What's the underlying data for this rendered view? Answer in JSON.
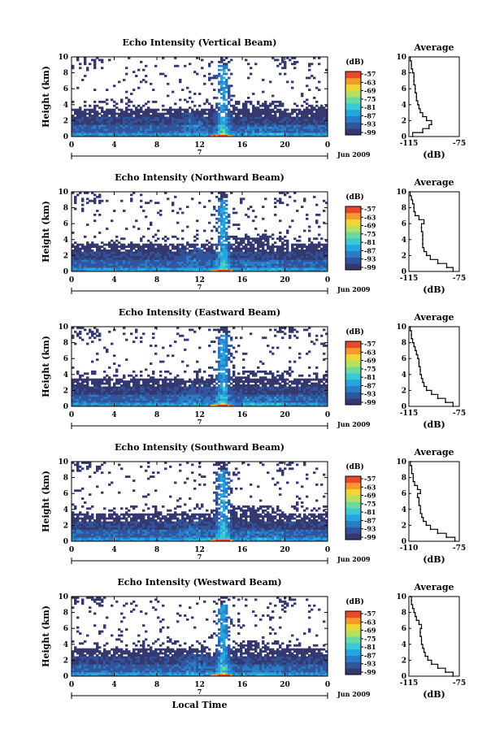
{
  "chart_data": [
    {
      "type": "heatmap",
      "title": "Echo Intensity (Vertical Beam)",
      "ylabel": "Height (km)",
      "x_ticks": [
        "0",
        "4",
        "8",
        "12",
        "16",
        "20",
        "0"
      ],
      "y_ticks": [
        "0",
        "2",
        "4",
        "6",
        "8",
        "10"
      ],
      "xlim": [
        0,
        24
      ],
      "ylim": [
        0,
        10
      ],
      "day_label": "7",
      "month_label": "Jun 2009",
      "colorbar": {
        "unit": "(dB)",
        "ticks": [
          "-57",
          "-63",
          "-69",
          "-75",
          "-81",
          "-87",
          "-93",
          "-99"
        ]
      },
      "profile": {
        "title": "Average",
        "xlabel": "(dB)",
        "x_ticks": [
          "-115",
          "-75"
        ],
        "xlim": [
          -115,
          -75
        ],
        "points": [
          [
            -112,
            0
          ],
          [
            -104,
            0.5
          ],
          [
            -99,
            1
          ],
          [
            -97,
            1.5
          ],
          [
            -101,
            2
          ],
          [
            -104,
            2.5
          ],
          [
            -106,
            3
          ],
          [
            -107,
            3.5
          ],
          [
            -108,
            4
          ],
          [
            -109,
            4.5
          ],
          [
            -109,
            5
          ],
          [
            -110,
            5.5
          ],
          [
            -110,
            6
          ],
          [
            -111,
            6.5
          ],
          [
            -111,
            7
          ],
          [
            -111,
            7.5
          ],
          [
            -112,
            8
          ],
          [
            -113,
            8.5
          ],
          [
            -113,
            9
          ],
          [
            -114,
            9.5
          ],
          [
            -114,
            10
          ]
        ]
      }
    },
    {
      "type": "heatmap",
      "title": "Echo Intensity (Northward Beam)",
      "ylabel": "Height (km)",
      "x_ticks": [
        "0",
        "4",
        "8",
        "12",
        "16",
        "20",
        "0"
      ],
      "y_ticks": [
        "0",
        "2",
        "4",
        "6",
        "8",
        "10"
      ],
      "xlim": [
        0,
        24
      ],
      "ylim": [
        0,
        10
      ],
      "day_label": "7",
      "month_label": "Jun 2009",
      "colorbar": {
        "unit": "(dB)",
        "ticks": [
          "-57",
          "-63",
          "-69",
          "-75",
          "-81",
          "-87",
          "-93",
          "-99"
        ]
      },
      "profile": {
        "title": "Average",
        "xlabel": "(dB)",
        "x_ticks": [
          "-115",
          "-75"
        ],
        "xlim": [
          -115,
          -75
        ],
        "points": [
          [
            -80,
            0
          ],
          [
            -85,
            0.5
          ],
          [
            -92,
            1
          ],
          [
            -98,
            1.5
          ],
          [
            -101,
            2
          ],
          [
            -103,
            2.5
          ],
          [
            -104,
            3
          ],
          [
            -104,
            3.5
          ],
          [
            -104,
            4
          ],
          [
            -104,
            4.5
          ],
          [
            -105,
            5
          ],
          [
            -105,
            5.5
          ],
          [
            -103,
            6
          ],
          [
            -107,
            6.5
          ],
          [
            -110,
            7
          ],
          [
            -111,
            7.5
          ],
          [
            -111,
            8
          ],
          [
            -112,
            8.5
          ],
          [
            -113,
            9
          ],
          [
            -114,
            9.5
          ],
          [
            -114,
            10
          ]
        ]
      }
    },
    {
      "type": "heatmap",
      "title": "Echo Intensity (Eastward Beam)",
      "ylabel": "Height (km)",
      "x_ticks": [
        "0",
        "4",
        "8",
        "12",
        "16",
        "20",
        "0"
      ],
      "y_ticks": [
        "0",
        "2",
        "4",
        "6",
        "8",
        "10"
      ],
      "xlim": [
        0,
        24
      ],
      "ylim": [
        0,
        10
      ],
      "day_label": "7",
      "month_label": "Jun 2009",
      "colorbar": {
        "unit": "(dB)",
        "ticks": [
          "-57",
          "-63",
          "-69",
          "-75",
          "-81",
          "-87",
          "-93",
          "-99"
        ]
      },
      "profile": {
        "title": "Average",
        "xlabel": "(dB)",
        "x_ticks": [
          "-115",
          "-75"
        ],
        "xlim": [
          -115,
          -75
        ],
        "points": [
          [
            -80,
            0
          ],
          [
            -86,
            0.5
          ],
          [
            -92,
            1
          ],
          [
            -97,
            1.5
          ],
          [
            -101,
            2
          ],
          [
            -103,
            2.5
          ],
          [
            -104,
            3
          ],
          [
            -105,
            3.5
          ],
          [
            -106,
            4
          ],
          [
            -106,
            4.5
          ],
          [
            -107,
            5
          ],
          [
            -107,
            5.5
          ],
          [
            -108,
            6
          ],
          [
            -109,
            6.5
          ],
          [
            -110,
            7
          ],
          [
            -111,
            7.5
          ],
          [
            -112,
            8
          ],
          [
            -113,
            8.5
          ],
          [
            -113,
            9
          ],
          [
            -114,
            9.5
          ],
          [
            -114,
            10
          ]
        ]
      }
    },
    {
      "type": "heatmap",
      "title": "Echo Intensity (Southward Beam)",
      "ylabel": "Height (km)",
      "x_ticks": [
        "0",
        "4",
        "8",
        "12",
        "16",
        "20",
        "0"
      ],
      "y_ticks": [
        "0",
        "2",
        "4",
        "6",
        "8",
        "10"
      ],
      "xlim": [
        0,
        24
      ],
      "ylim": [
        0,
        10
      ],
      "day_label": "7",
      "month_label": "Jun 2009",
      "colorbar": {
        "unit": "(dB)",
        "ticks": [
          "-57",
          "-63",
          "-69",
          "-75",
          "-81",
          "-87",
          "-93",
          "-99"
        ]
      },
      "profile": {
        "title": "Average",
        "xlabel": "(dB)",
        "x_ticks": [
          "-110",
          "-75"
        ],
        "xlim": [
          -110,
          -75
        ],
        "points": [
          [
            -78,
            0
          ],
          [
            -84,
            0.5
          ],
          [
            -90,
            1
          ],
          [
            -95,
            1.5
          ],
          [
            -98,
            2
          ],
          [
            -100,
            2.5
          ],
          [
            -101,
            3
          ],
          [
            -102,
            3.5
          ],
          [
            -102,
            4
          ],
          [
            -103,
            4.5
          ],
          [
            -103,
            5
          ],
          [
            -104,
            5.5
          ],
          [
            -102,
            6
          ],
          [
            -104,
            6.5
          ],
          [
            -106,
            7
          ],
          [
            -107,
            7.5
          ],
          [
            -107,
            8
          ],
          [
            -108,
            8.5
          ],
          [
            -108,
            9
          ],
          [
            -109,
            9.5
          ],
          [
            -109,
            10
          ]
        ]
      }
    },
    {
      "type": "heatmap",
      "title": "Echo Intensity (Westward Beam)",
      "ylabel": "Height (km)",
      "x_ticks": [
        "0",
        "4",
        "8",
        "12",
        "16",
        "20",
        "0"
      ],
      "y_ticks": [
        "0",
        "2",
        "4",
        "6",
        "8",
        "10"
      ],
      "xlim": [
        0,
        24
      ],
      "ylim": [
        0,
        10
      ],
      "day_label": "7",
      "month_label": "Jun 2009",
      "xlabel": "Local Time",
      "colorbar": {
        "unit": "(dB)",
        "ticks": [
          "-57",
          "-63",
          "-69",
          "-75",
          "-81",
          "-87",
          "-93",
          "-99"
        ]
      },
      "profile": {
        "title": "Average",
        "xlabel": "(dB)",
        "x_ticks": [
          "-115",
          "-75"
        ],
        "xlim": [
          -115,
          -75
        ],
        "points": [
          [
            -80,
            0
          ],
          [
            -86,
            0.5
          ],
          [
            -92,
            1
          ],
          [
            -97,
            1.5
          ],
          [
            -100,
            2
          ],
          [
            -102,
            2.5
          ],
          [
            -103,
            3
          ],
          [
            -104,
            3.5
          ],
          [
            -105,
            4
          ],
          [
            -105,
            4.5
          ],
          [
            -106,
            5
          ],
          [
            -106,
            5.5
          ],
          [
            -105,
            6
          ],
          [
            -107,
            6.5
          ],
          [
            -109,
            7
          ],
          [
            -110,
            7.5
          ],
          [
            -111,
            8
          ],
          [
            -112,
            8.5
          ],
          [
            -113,
            9
          ],
          [
            -113,
            9.5
          ],
          [
            -114,
            10
          ]
        ]
      }
    }
  ],
  "colors": {
    "colormap": [
      "#34386f",
      "#31559c",
      "#2b7cc7",
      "#26a6e0",
      "#3cc9d4",
      "#6bd9a0",
      "#b5e061",
      "#efd536",
      "#f49a2c",
      "#e9482b"
    ],
    "axis": "#000000"
  }
}
